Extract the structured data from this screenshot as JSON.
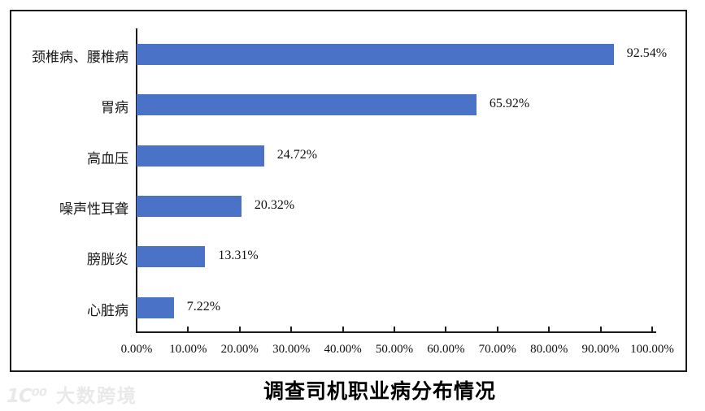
{
  "chart_data": {
    "type": "bar",
    "orientation": "horizontal",
    "title": "调查司机职业病分布情况",
    "categories": [
      "颈椎病、腰椎病",
      "胃病",
      "高血压",
      "噪声性耳聋",
      "膀胱炎",
      "心脏病"
    ],
    "values": [
      92.54,
      65.92,
      24.72,
      20.32,
      13.31,
      7.22
    ],
    "data_labels": [
      "92.54%",
      "65.92%",
      "24.72%",
      "20.32%",
      "13.31%",
      "7.22%"
    ],
    "x_tick_labels": [
      "0.00%",
      "10.00%",
      "20.00%",
      "30.00%",
      "40.00%",
      "50.00%",
      "60.00%",
      "70.00%",
      "80.00%",
      "90.00%",
      "100.00%"
    ],
    "xlim": [
      0,
      100
    ],
    "xlabel": "",
    "ylabel": "",
    "grid": false,
    "legend": null,
    "bar_color": "#4A73C8",
    "axis_color": "#1a1a1a",
    "label_color": "#111111"
  },
  "watermark": {
    "logo": "1C⁰⁰",
    "text": "大数跨境"
  }
}
